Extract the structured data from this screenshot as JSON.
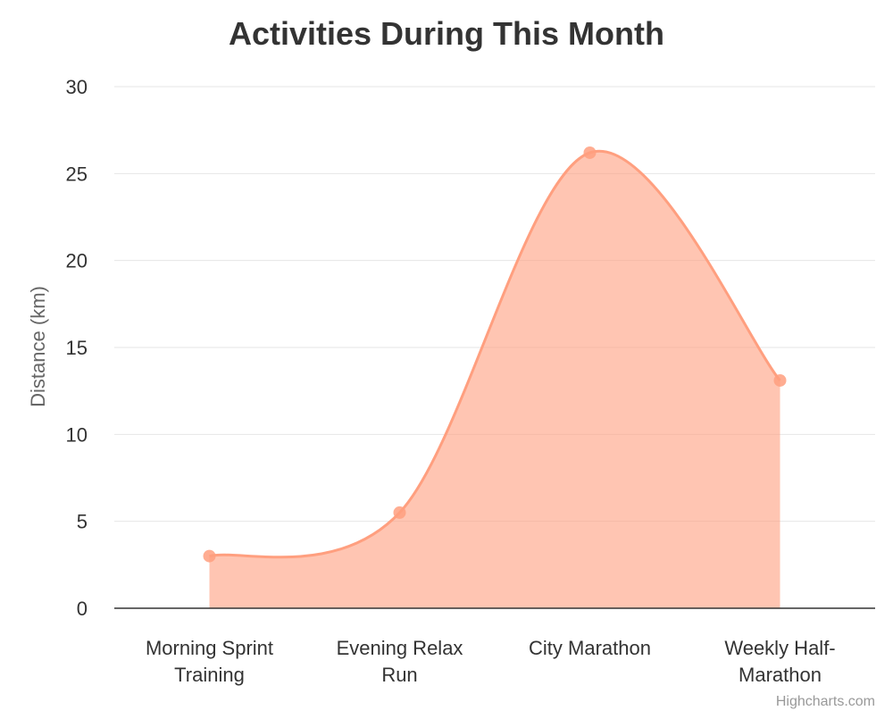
{
  "chart_data": {
    "type": "area",
    "title": "Activities During This Month",
    "ylabel": "Distance (km)",
    "xlabel": "",
    "categories": [
      [
        "Morning Sprint",
        "Training"
      ],
      [
        "Evening Relax",
        "Run"
      ],
      [
        "City Marathon"
      ],
      [
        "Weekly Half-",
        "Marathon"
      ]
    ],
    "series": [
      {
        "values": [
          3,
          5.5,
          26.2,
          13.1
        ],
        "color": "#ff9f7f"
      }
    ],
    "ylim": [
      0,
      30
    ],
    "yticks": [
      0,
      5,
      10,
      15,
      20,
      25,
      30
    ],
    "grid": true,
    "legend": "none",
    "smooth": true
  },
  "credits": "Highcharts.com"
}
